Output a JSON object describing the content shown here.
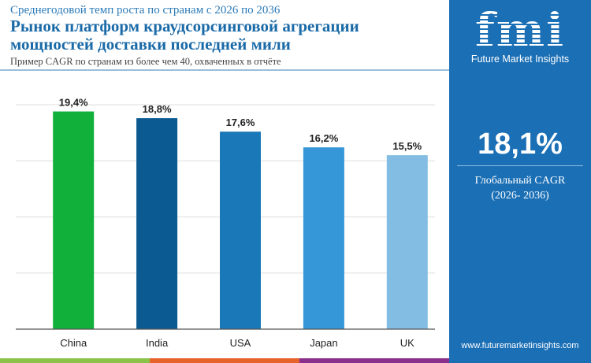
{
  "header": {
    "subtitle": "Среднегодовой темп роста по странам с 2026 по 2036",
    "title": "Рынок платформ краудсорсинговой агрегации мощностей доставки последней мили",
    "note": "Пример CAGR по странам из более чем 40, охваченных в отчёте"
  },
  "panel": {
    "logo": "fmi",
    "brand": "Future Market Insights",
    "cagr": "18,1%",
    "cagr_label": "Глобальный CAGR",
    "period": "(2026- 2036)",
    "url": "www.futuremarketinsights.com"
  },
  "chart_data": {
    "type": "bar",
    "categories": [
      "China",
      "India",
      "USA",
      "Japan",
      "UK"
    ],
    "values": [
      19.4,
      18.8,
      17.6,
      16.2,
      15.5
    ],
    "labels": [
      "19,4%",
      "18,8%",
      "17,6%",
      "16,2%",
      "15,5%"
    ],
    "colors": [
      "#10b03a",
      "#0b5a92",
      "#1b78b8",
      "#3597d8",
      "#83bde3"
    ],
    "ylim": [
      0,
      20
    ],
    "grid": true
  },
  "stripes": [
    "#8bc34a",
    "#e8622c",
    "#8b2f8c"
  ]
}
